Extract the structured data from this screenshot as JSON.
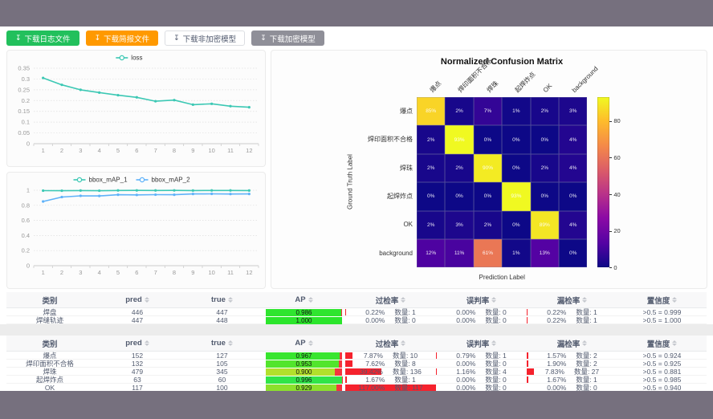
{
  "colors": {
    "frame": "#76707e",
    "teal": "#3cc8b4",
    "blue": "#5fb2f9",
    "success": "#22c05c",
    "warning": "#ff9900",
    "gray_button": "#8f8f98",
    "bar_red": "#f5222d",
    "header_bg": "#f8f8f9"
  },
  "toolbar": {
    "download_icon_char": "↧",
    "buttons": [
      {
        "name": "download-log-button",
        "label": "下载日志文件",
        "style": "success"
      },
      {
        "name": "download-report-button",
        "label": "下载简报文件",
        "style": "warning"
      },
      {
        "name": "download-plain-model-button",
        "label": "下载非加密模型",
        "style": "default"
      },
      {
        "name": "download-encrypted-model-button",
        "label": "下载加密模型",
        "style": "gray"
      }
    ]
  },
  "chart_data": [
    {
      "id": "loss",
      "type": "line",
      "categories": [
        "1",
        "2",
        "3",
        "4",
        "5",
        "6",
        "7",
        "8",
        "9",
        "10",
        "11",
        "12"
      ],
      "series": [
        {
          "name": "loss",
          "color": "#3cc8b4",
          "values": [
            0.305,
            0.273,
            0.25,
            0.237,
            0.225,
            0.215,
            0.197,
            0.202,
            0.181,
            0.185,
            0.174,
            0.169
          ]
        }
      ],
      "ylim": [
        0,
        0.35
      ],
      "yticks": [
        "0",
        "0.05",
        "0.1",
        "0.15",
        "0.2",
        "0.25",
        "0.3",
        "0.35"
      ],
      "grid": true,
      "legend_position": "top"
    },
    {
      "id": "bbox_map",
      "type": "line",
      "categories": [
        "1",
        "2",
        "3",
        "4",
        "5",
        "6",
        "7",
        "8",
        "9",
        "10",
        "11",
        "12"
      ],
      "series": [
        {
          "name": "bbox_mAP_1",
          "color": "#3cc8b4",
          "values": [
            0.995,
            0.994,
            0.996,
            0.994,
            0.997,
            0.998,
            0.997,
            0.998,
            0.996,
            0.997,
            0.997,
            0.996
          ]
        },
        {
          "name": "bbox_mAP_2",
          "color": "#5fb2f9",
          "values": [
            0.851,
            0.91,
            0.926,
            0.924,
            0.94,
            0.938,
            0.941,
            0.94,
            0.951,
            0.952,
            0.95,
            0.951
          ]
        }
      ],
      "ylim": [
        0,
        1
      ],
      "yticks": [
        "0",
        "0.2",
        "0.4",
        "0.6",
        "0.8",
        "1"
      ],
      "grid": true,
      "legend_position": "top"
    },
    {
      "id": "confusion",
      "type": "heatmap",
      "title": "Normalized Confusion Matrix",
      "xlabel": "Prediction Label",
      "ylabel": "Ground Truth Label",
      "labels": [
        "爆点",
        "焊印面积不合格",
        "焊珠",
        "起焊炸点",
        "OK",
        "background"
      ],
      "matrix_percent": [
        [
          85,
          2,
          7,
          1,
          2,
          3
        ],
        [
          2,
          93,
          0,
          0,
          0,
          4
        ],
        [
          2,
          2,
          90,
          0,
          2,
          4
        ],
        [
          0,
          0,
          0,
          93,
          0,
          0
        ],
        [
          2,
          3,
          2,
          0,
          89,
          4
        ],
        [
          12,
          11,
          61,
          1,
          13,
          0
        ]
      ],
      "colormap": "plasma",
      "vmax": 93,
      "colorbar_ticks": [
        0,
        20,
        40,
        60,
        80
      ]
    }
  ],
  "tables": [
    {
      "columns": [
        {
          "label": "类别",
          "sortable": false
        },
        {
          "label": "pred",
          "sortable": true
        },
        {
          "label": "true",
          "sortable": true
        },
        {
          "label": "AP",
          "sortable": true
        },
        {
          "label": "过检率",
          "sortable": true
        },
        {
          "label": "误判率",
          "sortable": true
        },
        {
          "label": "漏检率",
          "sortable": true
        },
        {
          "label": "置信度",
          "sortable": true
        }
      ],
      "rows": [
        {
          "class": "焊盘",
          "pred": "446",
          "true": "447",
          "ap": "0.986",
          "ap_value": 0.986,
          "ap_color": "#2fe52f",
          "over_pct": "0.22%",
          "over_cnt": "数量: 1",
          "over_value": 0.22,
          "mis_pct": "0.00%",
          "mis_cnt": "数量: 0",
          "mis_value": 0,
          "miss_pct": "0.22%",
          "miss_cnt": "数量: 1",
          "miss_value": 0.22,
          "conf": ">0.5 = 0.999"
        },
        {
          "class": "焊缝轨迹",
          "pred": "447",
          "true": "448",
          "ap": "1.000",
          "ap_value": 1.0,
          "ap_color": "#2be52b",
          "over_pct": "0.00%",
          "over_cnt": "数量: 0",
          "over_value": 0,
          "mis_pct": "0.00%",
          "mis_cnt": "数量: 0",
          "mis_value": 0,
          "miss_pct": "0.22%",
          "miss_cnt": "数量: 1",
          "miss_value": 0.22,
          "conf": ">0.5 = 1.000"
        }
      ]
    },
    {
      "columns": [
        {
          "label": "类别",
          "sortable": false
        },
        {
          "label": "pred",
          "sortable": true
        },
        {
          "label": "true",
          "sortable": true
        },
        {
          "label": "AP",
          "sortable": true
        },
        {
          "label": "过检率",
          "sortable": true
        },
        {
          "label": "误判率",
          "sortable": true
        },
        {
          "label": "漏检率",
          "sortable": true
        },
        {
          "label": "置信度",
          "sortable": true
        }
      ],
      "rows": [
        {
          "class": "爆点",
          "pred": "152",
          "true": "127",
          "ap": "0.967",
          "ap_value": 0.967,
          "ap_color": "#38e52f",
          "over_pct": "7.87%",
          "over_cnt": "数量: 10",
          "over_value": 7.87,
          "mis_pct": "0.79%",
          "mis_cnt": "数量: 1",
          "mis_value": 0.79,
          "miss_pct": "1.57%",
          "miss_cnt": "数量: 2",
          "miss_value": 1.57,
          "conf": ">0.5 = 0.924"
        },
        {
          "class": "焊印面积不合格",
          "pred": "132",
          "true": "105",
          "ap": "0.953",
          "ap_value": 0.953,
          "ap_color": "#52e52c",
          "over_pct": "7.62%",
          "over_cnt": "数量: 8",
          "over_value": 7.62,
          "mis_pct": "0.00%",
          "mis_cnt": "数量: 0",
          "mis_value": 0,
          "miss_pct": "1.90%",
          "miss_cnt": "数量: 2",
          "miss_value": 1.9,
          "conf": ">0.5 = 0.925"
        },
        {
          "class": "焊珠",
          "pred": "479",
          "true": "345",
          "ap": "0.900",
          "ap_value": 0.9,
          "ap_color": "#b2e02c",
          "over_pct": "39.42%",
          "over_cnt": "数量: 136",
          "over_value": 39.42,
          "mis_pct": "1.16%",
          "mis_cnt": "数量: 4",
          "mis_value": 1.16,
          "miss_pct": "7.83%",
          "miss_cnt": "数量: 27",
          "miss_value": 7.83,
          "conf": ">0.5 = 0.881"
        },
        {
          "class": "起焊炸点",
          "pred": "63",
          "true": "60",
          "ap": "0.996",
          "ap_value": 0.996,
          "ap_color": "#30e548",
          "over_pct": "1.67%",
          "over_cnt": "数量: 1",
          "over_value": 1.67,
          "mis_pct": "0.00%",
          "mis_cnt": "数量: 0",
          "mis_value": 0,
          "miss_pct": "1.67%",
          "miss_cnt": "数量: 1",
          "miss_value": 1.67,
          "conf": ">0.5 = 0.985"
        },
        {
          "class": "OK",
          "pred": "117",
          "true": "100",
          "ap": "0.929",
          "ap_value": 0.929,
          "ap_color": "#8ce02c",
          "over_pct": "117.00%",
          "over_cnt": "数量: 117",
          "over_value": 117,
          "mis_pct": "0.00%",
          "mis_cnt": "数量: 0",
          "mis_value": 0,
          "miss_pct": "0.00%",
          "miss_cnt": "数量: 0",
          "miss_value": 0,
          "conf": ">0.5 = 0.940"
        }
      ]
    }
  ]
}
